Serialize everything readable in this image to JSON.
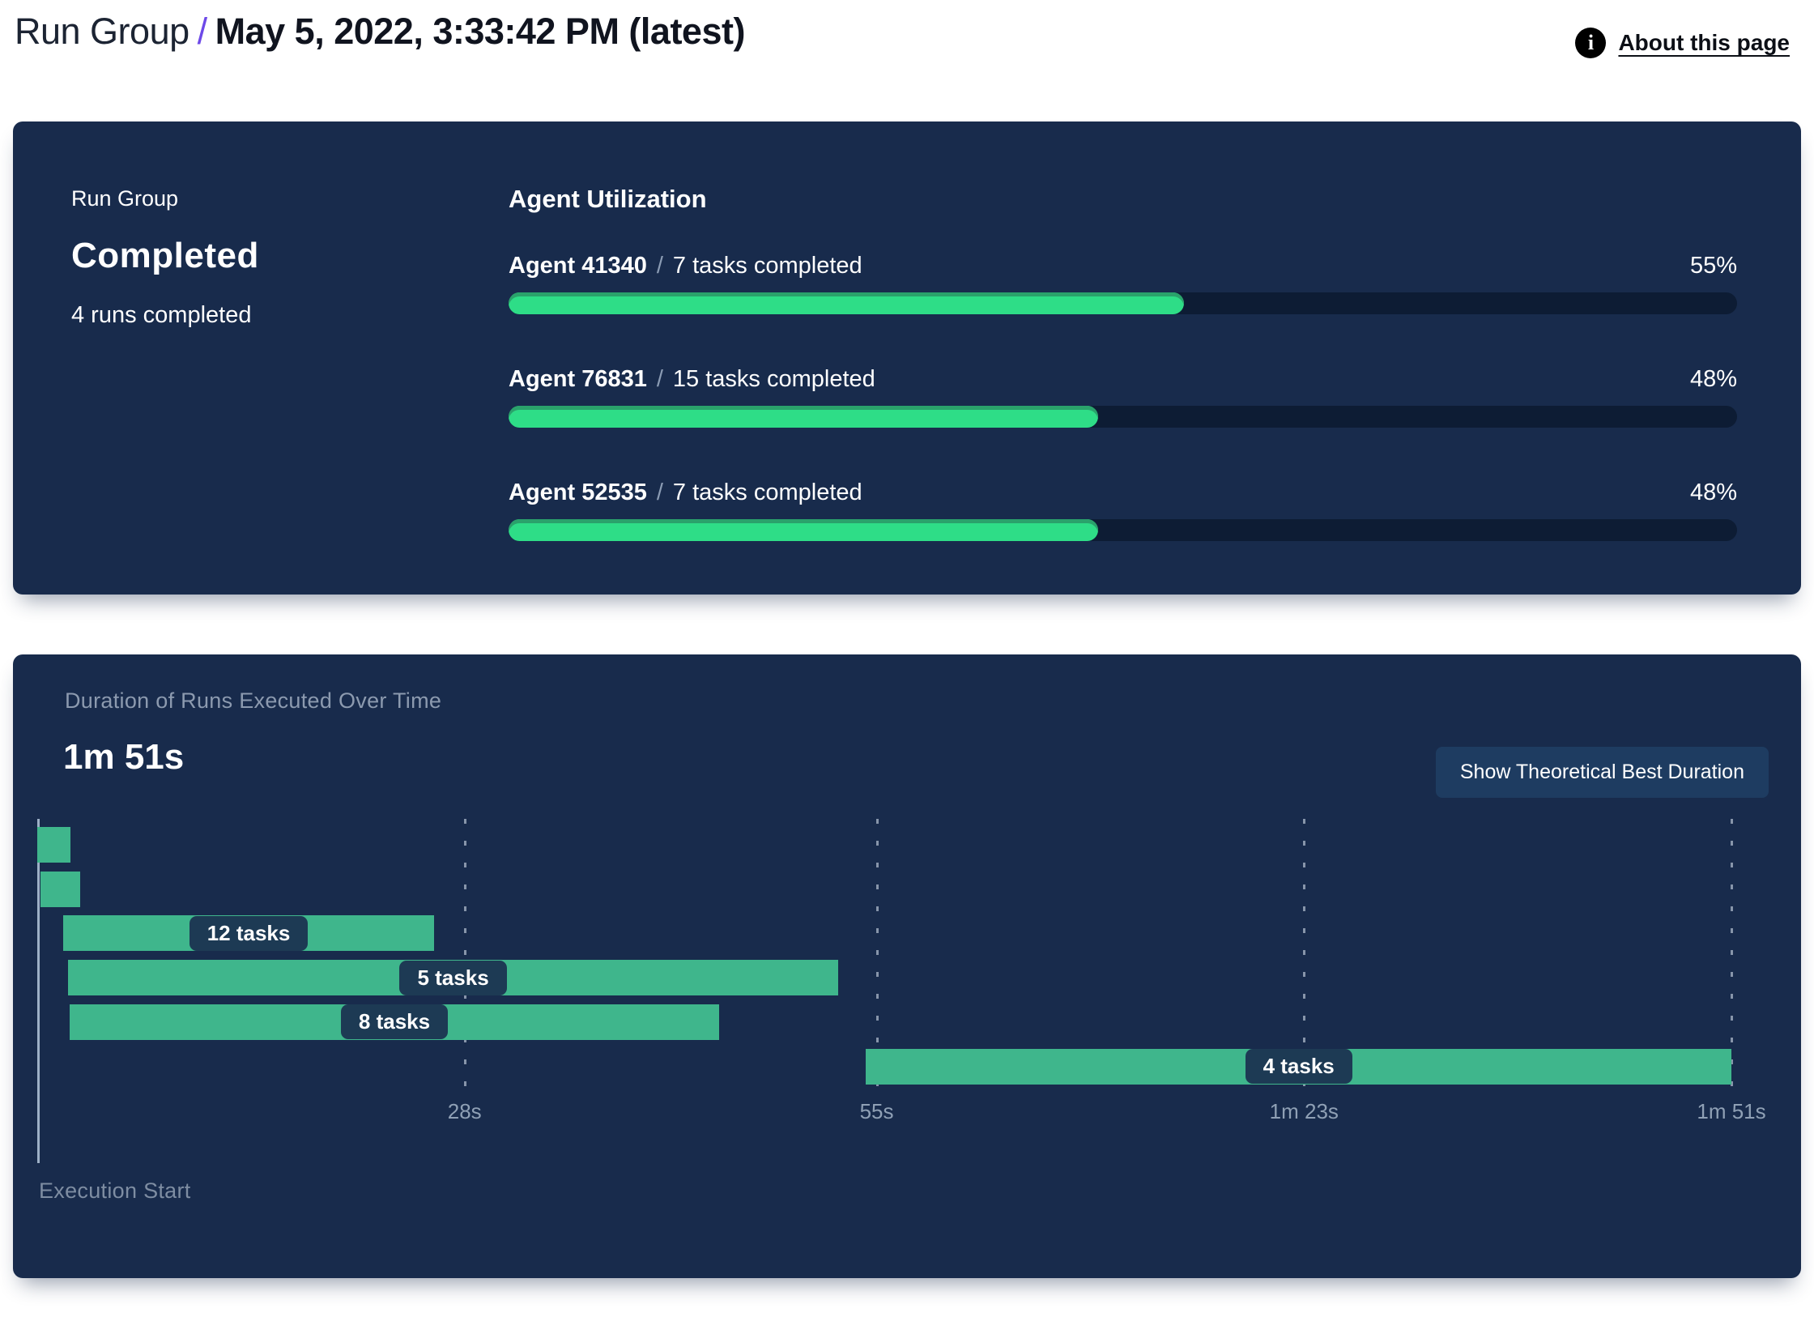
{
  "header": {
    "breadcrumb": "Run Group",
    "separator": "/",
    "title": "May 5, 2022, 3:33:42 PM (latest)",
    "info_icon_glyph": "i",
    "about_link": "About this page"
  },
  "status_panel": {
    "label": "Run Group",
    "status": "Completed",
    "subtext": "4 runs completed",
    "utilization": {
      "title": "Agent Utilization",
      "separator": "/",
      "agents": [
        {
          "name": "Agent 41340",
          "tasks": "7 tasks completed",
          "percent": "55%",
          "value": 55
        },
        {
          "name": "Agent 76831",
          "tasks": "15 tasks completed",
          "percent": "48%",
          "value": 48
        },
        {
          "name": "Agent 52535",
          "tasks": "7 tasks completed",
          "percent": "48%",
          "value": 48
        }
      ]
    }
  },
  "duration_panel": {
    "subtitle": "Duration of Runs Executed Over Time",
    "total_duration": "1m 51s",
    "button_label": "Show Theoretical Best Duration",
    "axis_label": "Execution Start"
  },
  "colors": {
    "panel_bg": "#182b4c",
    "progress_fill": "#2edd87",
    "progress_fill_edge": "#2aa26b",
    "progress_track": "#0d1c34",
    "gantt_bar": "#3fb68c",
    "pill_bg": "#1d3a54",
    "button_bg": "#1e3c61",
    "accent_purple": "#6d49e8",
    "muted_text": "#8c9aaf"
  },
  "chart_data": [
    {
      "type": "bar",
      "title": "Agent Utilization",
      "categories": [
        "Agent 41340",
        "Agent 76831",
        "Agent 52535"
      ],
      "series": [
        {
          "name": "utilization_percent",
          "values": [
            55,
            48,
            48
          ]
        },
        {
          "name": "tasks_completed",
          "values": [
            7,
            15,
            7
          ]
        }
      ],
      "value_labels": [
        "55%",
        "48%",
        "48%"
      ],
      "xlim": [
        0,
        100
      ],
      "orientation": "horizontal"
    },
    {
      "type": "gantt",
      "title": "Duration of Runs Executed Over Time",
      "total_label": "1m 51s",
      "xlabel": "Execution Start",
      "unit": "seconds",
      "xlim": [
        0,
        111
      ],
      "ticks": [
        {
          "t": 28,
          "label": "28s"
        },
        {
          "t": 55,
          "label": "55s"
        },
        {
          "t": 83,
          "label": "1m 23s"
        },
        {
          "t": 111,
          "label": "1m 51s"
        }
      ],
      "runs": [
        {
          "start": 0,
          "end": 2.2,
          "tasks": null,
          "label": ""
        },
        {
          "start": 0.2,
          "end": 2.8,
          "tasks": null,
          "label": ""
        },
        {
          "start": 1.7,
          "end": 26,
          "tasks": 12,
          "label": "12 tasks"
        },
        {
          "start": 2,
          "end": 52.5,
          "tasks": 5,
          "label": "5 tasks"
        },
        {
          "start": 2.1,
          "end": 44.7,
          "tasks": 8,
          "label": "8 tasks"
        },
        {
          "start": 54.3,
          "end": 111,
          "tasks": 4,
          "label": "4 tasks"
        }
      ]
    }
  ]
}
